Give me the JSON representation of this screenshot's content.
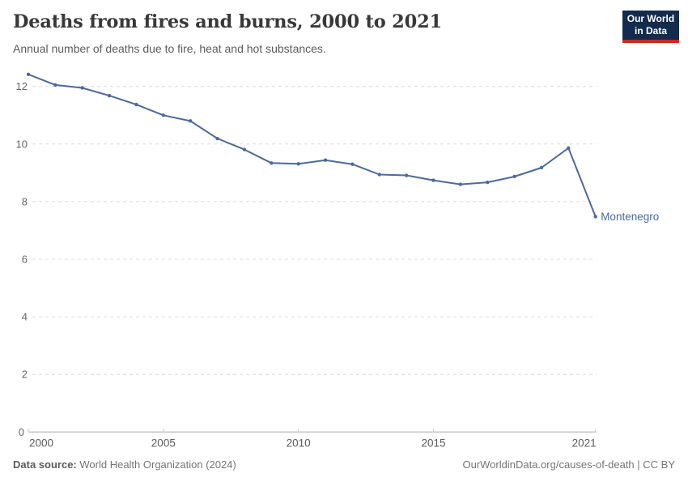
{
  "header": {
    "title": "Deaths from fires and burns, 2000 to 2021",
    "subtitle": "Annual number of deaths due to fire, heat and hot substances.",
    "logo": {
      "line1": "Our World",
      "line2": "in Data",
      "bg_color": "#132b4d",
      "accent_color": "#cf2722"
    }
  },
  "chart_data": {
    "type": "line",
    "title": "Deaths from fires and burns, 2000 to 2021",
    "subtitle": "Annual number of deaths due to fire, heat and hot substances.",
    "x": [
      2000,
      2001,
      2002,
      2003,
      2004,
      2005,
      2006,
      2007,
      2008,
      2009,
      2010,
      2011,
      2012,
      2013,
      2014,
      2015,
      2016,
      2017,
      2018,
      2019,
      2020,
      2021
    ],
    "series": [
      {
        "name": "Montenegro",
        "color": "#4C6A9C",
        "values": [
          12.42,
          12.05,
          11.95,
          11.68,
          11.37,
          11.0,
          10.8,
          10.19,
          9.81,
          9.34,
          9.31,
          9.44,
          9.3,
          8.94,
          8.91,
          8.74,
          8.6,
          8.67,
          8.87,
          9.18,
          9.86,
          7.48
        ]
      }
    ],
    "end_label": "Montenegro",
    "xlabel": "",
    "ylabel": "",
    "ylim": [
      0,
      12.6
    ],
    "yticks": [
      0,
      2,
      4,
      6,
      8,
      10,
      12
    ],
    "xticks": [
      2000,
      2005,
      2010,
      2015,
      2021
    ],
    "grid": "horizontal-dashed",
    "legend_position": "end-of-line",
    "style": {
      "grid_color": "#dcdcdc",
      "axis_color": "#a6a6a6",
      "tick_color": "#c8c8c8",
      "ytick_label_color": "#666666",
      "xtick_label_color": "#5b5b5b"
    }
  },
  "footer": {
    "source_label": "Data source:",
    "source_value": "World Health Organization (2024)",
    "credit": "OurWorldinData.org/causes-of-death | CC BY"
  }
}
